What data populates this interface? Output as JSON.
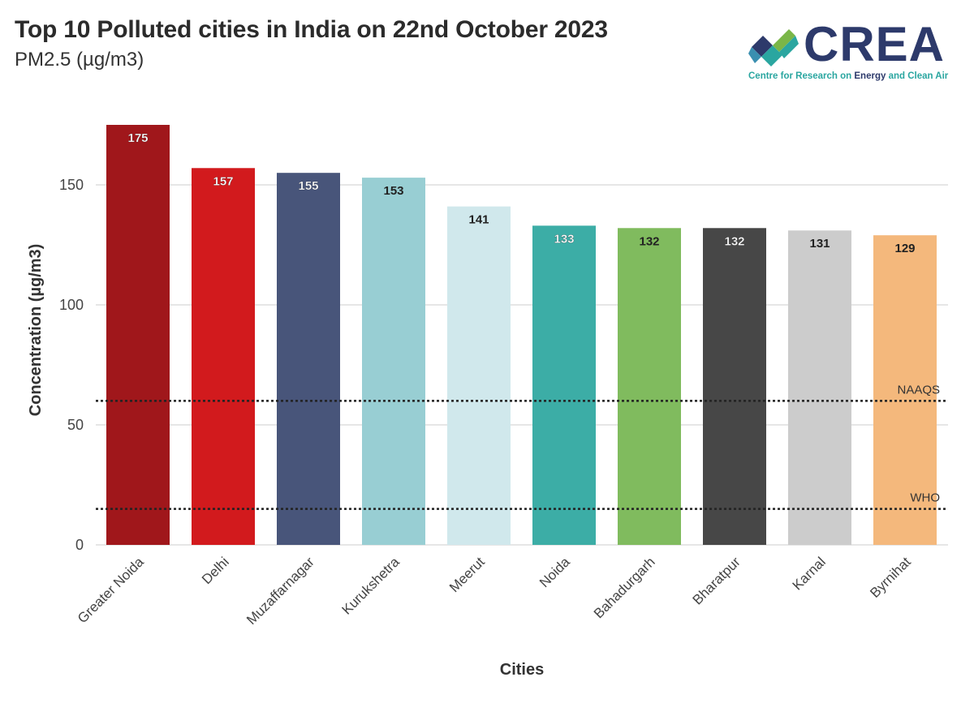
{
  "header": {
    "title": "Top 10 Polluted cities in India on 22nd October 2023",
    "subtitle": "PM2.5 (µg/m3)"
  },
  "logo": {
    "word": "CREA",
    "tagline_1": "Centre for Research on ",
    "tagline_2": "Energy",
    "tagline_3": " and Clean Air",
    "colors": [
      "#2d3a6b",
      "#2aa6a0",
      "#7ab648"
    ]
  },
  "chart_data": {
    "type": "bar",
    "title": "Top 10 Polluted cities in India on 22nd October 2023",
    "subtitle": "PM2.5 (µg/m3)",
    "xlabel": "Cities",
    "ylabel": "Concentration (µg/m3)",
    "ylim": [
      0,
      180
    ],
    "yticks": [
      0,
      50,
      100,
      150
    ],
    "grid": true,
    "categories": [
      "Greater Noida",
      "Delhi",
      "Muzaffarnagar",
      "Kurukshetra",
      "Meerut",
      "Noida",
      "Bahadurgarh",
      "Bharatpur",
      "Karnal",
      "Byrnihat"
    ],
    "values": [
      175,
      157,
      155,
      153,
      141,
      133,
      132,
      132,
      131,
      129
    ],
    "colors": [
      "#a0171b",
      "#d21a1d",
      "#48557a",
      "#98ced3",
      "#d0e8ec",
      "#3cada6",
      "#80bb5e",
      "#474747",
      "#cccccc",
      "#f4b87c"
    ],
    "label_colors": [
      "#ffffff",
      "#ffffff",
      "#ffffff",
      "#222222",
      "#222222",
      "#ffffff",
      "#222222",
      "#ffffff",
      "#222222",
      "#222222"
    ],
    "reference_lines": [
      {
        "label": "NAAQS",
        "value": 60
      },
      {
        "label": "WHO",
        "value": 15
      }
    ]
  }
}
